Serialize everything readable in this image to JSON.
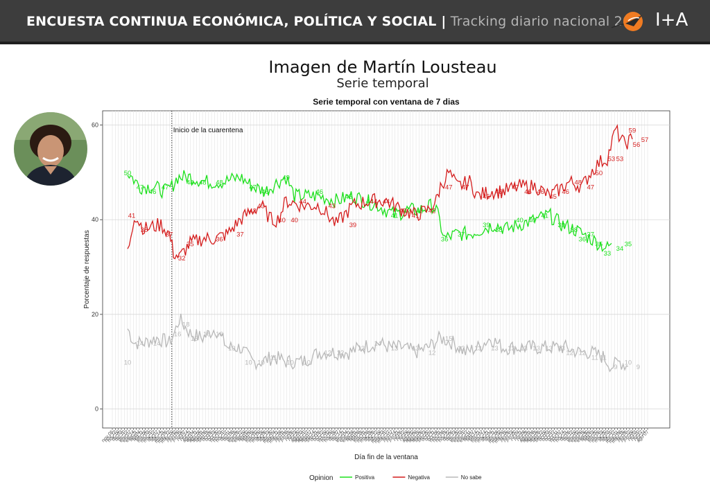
{
  "header": {
    "title_main": "ENCUESTA CONTINUA ECONÓMICA, POLÍTICA Y SOCIAL |",
    "title_sub": "Tracking diario nacional 202",
    "logo_text": "I+A"
  },
  "page": {
    "title": "Imagen de Martín Lousteau",
    "subtitle": "Serie temporal"
  },
  "colors": {
    "positiva": "#1be01b",
    "negativa": "#d41c1c",
    "nosabe": "#b8b8b8",
    "header_bg": "#3d3d3d"
  },
  "chart_data": {
    "type": "line",
    "title": "Serie temporal con ventana de 7 dias",
    "xlabel": "Día fin de la ventana",
    "ylabel": "Porcentaje de respuestas",
    "ylim": [
      -4,
      63
    ],
    "yticks": [
      0,
      20,
      40,
      60
    ],
    "grid": true,
    "legend_title": "Opinion",
    "legend_position": "bottom",
    "annotation": "Inicio de la cuarentena",
    "event_x": 53,
    "x_range": [
      0,
      580
    ],
    "series": [
      {
        "name": "Positiva",
        "key": "positiva",
        "points": [
          [
            0,
            50
          ],
          [
            15,
            47
          ],
          [
            30,
            47
          ],
          [
            45,
            46
          ],
          [
            53,
            47
          ],
          [
            60,
            49
          ],
          [
            75,
            49
          ],
          [
            95,
            48
          ],
          [
            115,
            48
          ],
          [
            135,
            49
          ],
          [
            150,
            47
          ],
          [
            165,
            46
          ],
          [
            180,
            48
          ],
          [
            190,
            49
          ],
          [
            200,
            45
          ],
          [
            215,
            45
          ],
          [
            230,
            45
          ],
          [
            250,
            44
          ],
          [
            270,
            45
          ],
          [
            285,
            44
          ],
          [
            300,
            43
          ],
          [
            310,
            42
          ],
          [
            320,
            41
          ],
          [
            335,
            42
          ],
          [
            350,
            42
          ],
          [
            365,
            43
          ],
          [
            370,
            42
          ],
          [
            380,
            36
          ],
          [
            395,
            37
          ],
          [
            410,
            37
          ],
          [
            425,
            38
          ],
          [
            440,
            39
          ],
          [
            455,
            38
          ],
          [
            470,
            39
          ],
          [
            490,
            40
          ],
          [
            505,
            41
          ],
          [
            520,
            39
          ],
          [
            535,
            38
          ],
          [
            545,
            37
          ],
          [
            555,
            36
          ],
          [
            565,
            35
          ],
          [
            575,
            34
          ],
          [
            580,
            35
          ]
        ],
        "labels": [
          [
            0,
            50
          ],
          [
            15,
            47
          ],
          [
            30,
            46
          ],
          [
            45,
            47
          ],
          [
            75,
            48
          ],
          [
            90,
            48
          ],
          [
            110,
            48
          ],
          [
            150,
            47
          ],
          [
            165,
            46
          ],
          [
            190,
            49
          ],
          [
            230,
            46
          ],
          [
            265,
            45
          ],
          [
            290,
            44
          ],
          [
            320,
            41
          ],
          [
            335,
            42
          ],
          [
            350,
            42
          ],
          [
            380,
            36
          ],
          [
            400,
            37
          ],
          [
            430,
            39
          ],
          [
            445,
            38
          ],
          [
            470,
            40
          ],
          [
            485,
            40
          ],
          [
            500,
            41
          ],
          [
            520,
            39
          ],
          [
            535,
            38
          ],
          [
            545,
            36
          ],
          [
            555,
            37
          ],
          [
            565,
            35
          ],
          [
            575,
            33
          ],
          [
            590,
            34
          ],
          [
            600,
            35
          ]
        ]
      },
      {
        "name": "Negativa",
        "key": "negativa",
        "points": [
          [
            0,
            33
          ],
          [
            8,
            41
          ],
          [
            20,
            38
          ],
          [
            40,
            39
          ],
          [
            50,
            37
          ],
          [
            55,
            33
          ],
          [
            62,
            32
          ],
          [
            75,
            35
          ],
          [
            90,
            36
          ],
          [
            105,
            36
          ],
          [
            120,
            37
          ],
          [
            135,
            40
          ],
          [
            150,
            42
          ],
          [
            160,
            43
          ],
          [
            172,
            40
          ],
          [
            180,
            40
          ],
          [
            190,
            44
          ],
          [
            210,
            43
          ],
          [
            230,
            43
          ],
          [
            250,
            39
          ],
          [
            270,
            43
          ],
          [
            290,
            44
          ],
          [
            310,
            44
          ],
          [
            330,
            42
          ],
          [
            345,
            41
          ],
          [
            360,
            42
          ],
          [
            370,
            44
          ],
          [
            375,
            47
          ],
          [
            385,
            50
          ],
          [
            395,
            47
          ],
          [
            410,
            48
          ],
          [
            420,
            45
          ],
          [
            435,
            46
          ],
          [
            450,
            46
          ],
          [
            470,
            47
          ],
          [
            490,
            47
          ],
          [
            505,
            45
          ],
          [
            515,
            46
          ],
          [
            530,
            48
          ],
          [
            545,
            47
          ],
          [
            555,
            50
          ],
          [
            565,
            52
          ],
          [
            575,
            53
          ],
          [
            585,
            59
          ],
          [
            595,
            56
          ],
          [
            605,
            57
          ]
        ],
        "labels": [
          [
            5,
            41
          ],
          [
            20,
            38
          ],
          [
            50,
            37
          ],
          [
            65,
            32
          ],
          [
            75,
            35
          ],
          [
            110,
            36
          ],
          [
            135,
            37
          ],
          [
            150,
            42
          ],
          [
            160,
            43
          ],
          [
            185,
            40
          ],
          [
            200,
            40
          ],
          [
            210,
            44
          ],
          [
            245,
            43
          ],
          [
            270,
            39
          ],
          [
            295,
            44
          ],
          [
            310,
            44
          ],
          [
            330,
            42
          ],
          [
            345,
            41
          ],
          [
            365,
            42
          ],
          [
            385,
            47
          ],
          [
            405,
            47
          ],
          [
            430,
            45
          ],
          [
            445,
            46
          ],
          [
            465,
            47
          ],
          [
            480,
            46
          ],
          [
            495,
            46
          ],
          [
            510,
            45
          ],
          [
            525,
            46
          ],
          [
            540,
            48
          ],
          [
            555,
            47
          ],
          [
            565,
            50
          ],
          [
            580,
            53
          ],
          [
            590,
            53
          ],
          [
            605,
            59
          ],
          [
            610,
            56
          ],
          [
            620,
            57
          ]
        ]
      },
      {
        "name": "No sabe",
        "key": "nosabe",
        "points": [
          [
            0,
            17
          ],
          [
            8,
            14
          ],
          [
            20,
            14
          ],
          [
            35,
            15
          ],
          [
            50,
            14
          ],
          [
            56,
            16
          ],
          [
            62,
            19
          ],
          [
            75,
            16
          ],
          [
            90,
            15
          ],
          [
            105,
            17
          ],
          [
            120,
            13
          ],
          [
            135,
            13
          ],
          [
            150,
            10
          ],
          [
            160,
            10
          ],
          [
            175,
            11
          ],
          [
            190,
            10
          ],
          [
            210,
            10
          ],
          [
            230,
            12
          ],
          [
            250,
            12
          ],
          [
            265,
            12
          ],
          [
            280,
            13
          ],
          [
            300,
            14
          ],
          [
            315,
            13
          ],
          [
            330,
            13
          ],
          [
            345,
            12
          ],
          [
            360,
            13
          ],
          [
            375,
            15
          ],
          [
            390,
            14
          ],
          [
            405,
            12
          ],
          [
            420,
            13
          ],
          [
            435,
            15
          ],
          [
            450,
            13
          ],
          [
            465,
            13
          ],
          [
            480,
            13
          ],
          [
            495,
            13
          ],
          [
            510,
            13
          ],
          [
            525,
            13
          ],
          [
            540,
            12
          ],
          [
            555,
            12
          ],
          [
            570,
            11
          ],
          [
            580,
            9
          ],
          [
            590,
            10
          ],
          [
            600,
            9
          ]
        ],
        "labels": [
          [
            0,
            10
          ],
          [
            15,
            14
          ],
          [
            35,
            14
          ],
          [
            60,
            16
          ],
          [
            70,
            18
          ],
          [
            80,
            15
          ],
          [
            95,
            16
          ],
          [
            110,
            16
          ],
          [
            125,
            13
          ],
          [
            145,
            10
          ],
          [
            160,
            10
          ],
          [
            175,
            11
          ],
          [
            195,
            10
          ],
          [
            215,
            10
          ],
          [
            240,
            12
          ],
          [
            255,
            12
          ],
          [
            280,
            13
          ],
          [
            300,
            14
          ],
          [
            320,
            13
          ],
          [
            345,
            13
          ],
          [
            365,
            12
          ],
          [
            385,
            15
          ],
          [
            400,
            13
          ],
          [
            420,
            13
          ],
          [
            440,
            13
          ],
          [
            460,
            13
          ],
          [
            475,
            13
          ],
          [
            490,
            13
          ],
          [
            505,
            13
          ],
          [
            520,
            13
          ],
          [
            530,
            12
          ],
          [
            545,
            12
          ],
          [
            560,
            11
          ],
          [
            570,
            11
          ],
          [
            585,
            9
          ],
          [
            600,
            10
          ],
          [
            612,
            9
          ]
        ]
      }
    ],
    "x_tick_labels": [
      "nov 05",
      "nov 12",
      "nov 19",
      "dic 03",
      "dic 10",
      "dic 17",
      "ene 07",
      "ene 14",
      "ene 21",
      "feb 04",
      "feb 11",
      "feb 18",
      "mar 03",
      "mar 10",
      "mar 17",
      "abr 07",
      "abr 14",
      "abr 21",
      "may 05",
      "may 12",
      "may 19",
      "jun 02",
      "jun 09",
      "jun 16",
      "jul 07",
      "jul 14",
      "jul 21",
      "ago 04",
      "ago 11",
      "ago 18",
      "sep 01",
      "sep 08",
      "sep 15",
      "oct 06",
      "oct 13",
      "oct 20",
      "nov 03",
      "nov 10",
      "nov 17",
      "dic 01",
      "dic 08",
      "dic 15",
      "ene 05",
      "ene 12",
      "ene 19",
      "feb 02",
      "feb 09",
      "feb 16",
      "mar 02",
      "mar 09",
      "mar 16",
      "abr 06",
      "abr 13",
      "abr 20",
      "may 04",
      "may 11",
      "may 18",
      "jun 01",
      "jun 08",
      "jun 15",
      "jul 06",
      "jul 13",
      "jul 20",
      "ago 03",
      "ago 10",
      "ago 17",
      "sep 07",
      "sep 14",
      "sep 21",
      "oct 05",
      "oct 12",
      "oct 19",
      "nov 02",
      "nov 09",
      "nov 16",
      "dic 07",
      "dic 14",
      "dic 21",
      "ene 04",
      "ene 11",
      "ene 18",
      "feb 01",
      "feb 08",
      "feb 15",
      "mar 01",
      "mar 08",
      "mar 15",
      "abr 05",
      "abr 12",
      "abr 19",
      "may 03",
      "may 10",
      "may 17",
      "jun 07",
      "jun 14",
      "jun 21",
      "jul 05",
      "jul 12",
      "jul 19",
      "jul 26",
      "ago 02",
      "ago 09",
      "ago 16",
      "sep 06",
      "sep 13",
      "sep 20",
      "oct 04",
      "oct 11",
      "oct 18",
      "nov 01",
      "nov 08",
      "nov 15",
      "nov 22",
      "dic 06",
      "dic 13",
      "dic 20",
      "ene 03",
      "ene 10",
      "ene 17",
      "ene 31",
      "feb 07",
      "feb 14",
      "feb 21",
      "mar 07",
      "mar 14",
      "mar 21",
      "abr 04",
      "abr 11",
      "abr 18",
      "may 02",
      "may 09",
      "may 16",
      "jun 06",
      "jun 13",
      "jun 20",
      "jul 04",
      "jul 11",
      "jul 18",
      "jul 25",
      "ago 01",
      "ago 08",
      "ago 15",
      "sep 05",
      "sep 12",
      "sep 19",
      "oct 03",
      "oct 10",
      "oct 17",
      "oct 31",
      "nov 07",
      "nov 14",
      "nov 21",
      "dic 05",
      "dic 12",
      "dic 19",
      "ene 02",
      "ene 09",
      "ene 16",
      "ene 30",
      "feb 06",
      "feb 13",
      "feb 20",
      "mar 06",
      "mar 13",
      "mar 20",
      "abr 03",
      "abr 10",
      "abr 17",
      "may 01",
      "may 08",
      "may 15",
      "jun 05",
      "jun 12",
      "jun 19",
      "jul 03",
      "jul 10",
      "jul 17",
      "jul 24",
      "ago 07"
    ],
    "legend": [
      {
        "key": "positiva",
        "label": "Positiva"
      },
      {
        "key": "negativa",
        "label": "Negativa"
      },
      {
        "key": "nosabe",
        "label": "No sabe"
      }
    ]
  }
}
